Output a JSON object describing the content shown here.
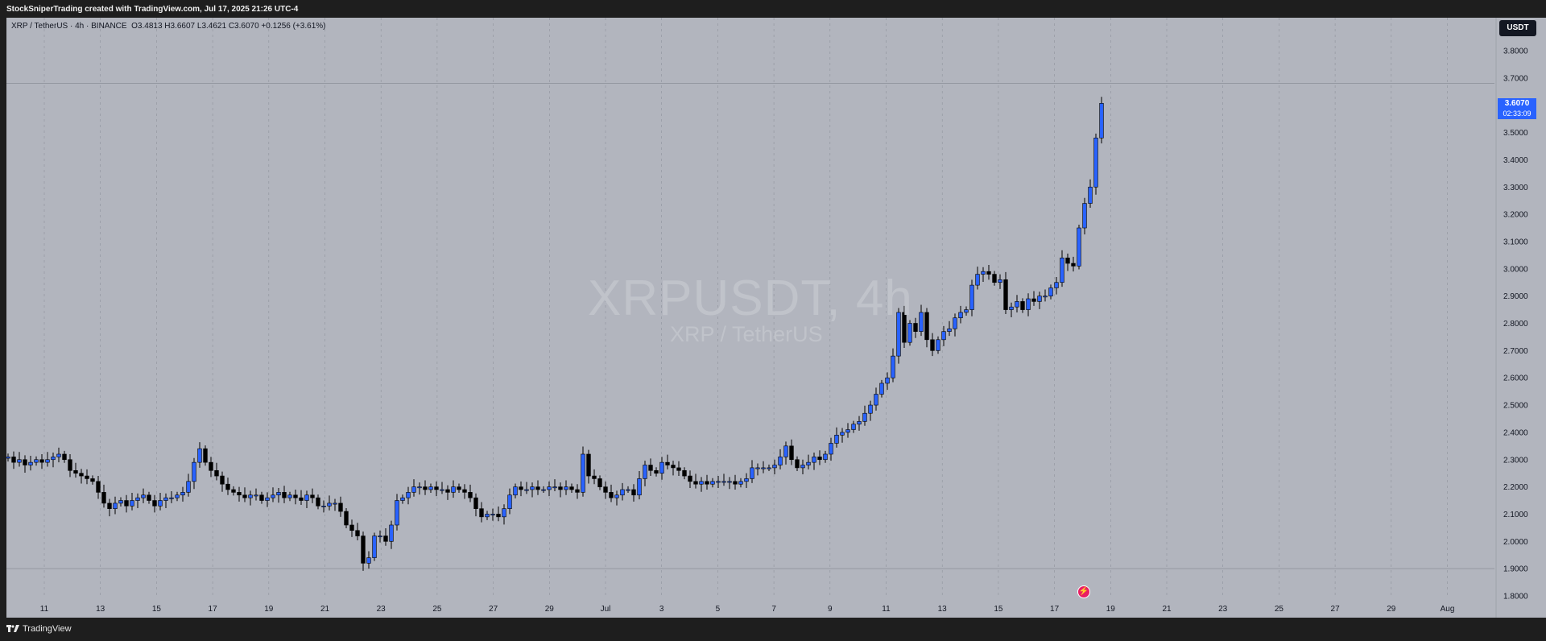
{
  "header": {
    "attribution": "StockSniperTrading created with TradingView.com, Jul 17, 2025 21:26 UTC-4"
  },
  "legend": {
    "symbol": "XRP / TetherUS · 4h · BINANCE",
    "open": "O3.4813",
    "high": "H3.6607",
    "low": "L3.4621",
    "close": "C3.6070",
    "change": "+0.1256 (+3.61%)"
  },
  "watermark": {
    "symbol": "XRPUSDT, 4h",
    "name": "XRP / TetherUS"
  },
  "currency_button": "USDT",
  "last_price": {
    "price": "3.6070",
    "countdown": "02:33:09"
  },
  "footer": {
    "brand": "TradingView"
  },
  "colors": {
    "background": "#b2b5be",
    "up_candle": "#2962ff",
    "down_candle": "#000000",
    "price_tag": "#2962ff",
    "grid": "#8f939c"
  },
  "chart_data": {
    "type": "candlestick",
    "y_axis": {
      "ticks": [
        "1.8000",
        "1.9000",
        "2.0000",
        "2.1000",
        "2.2000",
        "2.3000",
        "2.4000",
        "2.5000",
        "2.6000",
        "2.7000",
        "2.8000",
        "2.9000",
        "3.0000",
        "3.1000",
        "3.2000",
        "3.3000",
        "3.4000",
        "3.5000",
        "3.6000",
        "3.7000",
        "3.8000"
      ],
      "ylim": [
        1.8,
        3.8
      ]
    },
    "x_axis": {
      "ticks": [
        "11",
        "13",
        "15",
        "17",
        "19",
        "21",
        "23",
        "25",
        "27",
        "29",
        "Jul",
        "3",
        "5",
        "7",
        "9",
        "11",
        "13",
        "15",
        "17",
        "19",
        "21",
        "23",
        "25",
        "27",
        "29",
        "Aug"
      ]
    },
    "horizontal_lines": [
      3.68,
      1.9
    ],
    "series": [
      {
        "name": "XRPUSDT",
        "close": [
          2.31,
          2.29,
          2.3,
          2.28,
          2.29,
          2.3,
          2.29,
          2.3,
          2.31,
          2.32,
          2.3,
          2.26,
          2.25,
          2.24,
          2.23,
          2.22,
          2.18,
          2.14,
          2.12,
          2.14,
          2.15,
          2.13,
          2.15,
          2.16,
          2.17,
          2.15,
          2.13,
          2.15,
          2.16,
          2.16,
          2.17,
          2.18,
          2.22,
          2.29,
          2.34,
          2.29,
          2.26,
          2.24,
          2.21,
          2.19,
          2.18,
          2.17,
          2.16,
          2.17,
          2.17,
          2.15,
          2.16,
          2.17,
          2.18,
          2.16,
          2.17,
          2.16,
          2.15,
          2.17,
          2.16,
          2.13,
          2.13,
          2.14,
          2.14,
          2.11,
          2.06,
          2.04,
          2.02,
          1.92,
          1.94,
          2.02,
          2.02,
          2.0,
          2.06,
          2.15,
          2.16,
          2.18,
          2.2,
          2.2,
          2.19,
          2.2,
          2.19,
          2.19,
          2.18,
          2.2,
          2.19,
          2.18,
          2.16,
          2.12,
          2.09,
          2.1,
          2.1,
          2.09,
          2.12,
          2.17,
          2.2,
          2.19,
          2.19,
          2.2,
          2.19,
          2.19,
          2.2,
          2.2,
          2.19,
          2.2,
          2.19,
          2.18,
          2.32,
          2.24,
          2.23,
          2.2,
          2.18,
          2.16,
          2.17,
          2.19,
          2.19,
          2.17,
          2.23,
          2.28,
          2.26,
          2.25,
          2.29,
          2.28,
          2.27,
          2.26,
          2.24,
          2.22,
          2.21,
          2.22,
          2.21,
          2.22,
          2.22,
          2.22,
          2.22,
          2.21,
          2.22,
          2.23,
          2.27,
          2.27,
          2.27,
          2.27,
          2.28,
          2.31,
          2.35,
          2.3,
          2.27,
          2.28,
          2.29,
          2.31,
          2.3,
          2.32,
          2.36,
          2.39,
          2.4,
          2.41,
          2.43,
          2.44,
          2.47,
          2.5,
          2.54,
          2.58,
          2.6,
          2.68,
          2.84,
          2.73,
          2.8,
          2.77,
          2.84,
          2.74,
          2.7,
          2.74,
          2.77,
          2.78,
          2.82,
          2.84,
          2.85,
          2.94,
          2.98,
          2.99,
          2.98,
          2.95,
          2.96,
          2.85,
          2.86,
          2.88,
          2.85,
          2.89,
          2.88,
          2.9,
          2.9,
          2.93,
          2.95,
          3.04,
          3.02,
          3.01,
          3.15,
          3.24,
          3.3,
          3.48,
          3.607
        ]
      }
    ]
  }
}
